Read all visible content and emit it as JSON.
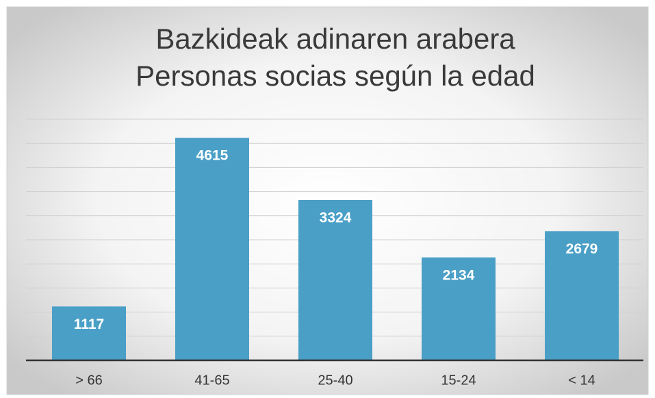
{
  "chart_data": {
    "type": "bar",
    "title": [
      "Bazkideak adinaren arabera",
      "Personas socias según la edad"
    ],
    "categories": [
      "> 66",
      "41-65",
      "25-40",
      "15-24",
      "< 14"
    ],
    "values": [
      1117,
      4615,
      3324,
      2134,
      2679
    ],
    "color": "#4a9fc6",
    "ylim": [
      0,
      5000
    ],
    "yticks": [
      0,
      500,
      1000,
      1500,
      2000,
      2500,
      3000,
      3500,
      4000,
      4500,
      5000
    ],
    "grid": true
  }
}
